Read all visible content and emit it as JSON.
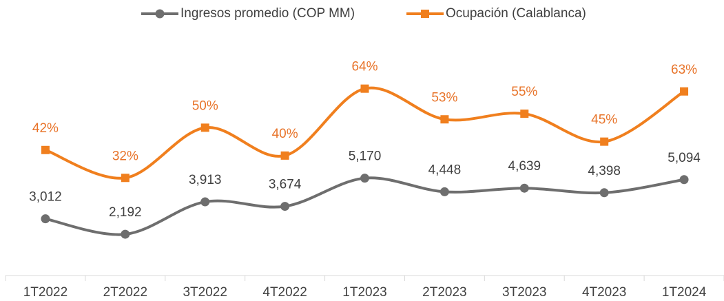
{
  "chart_data": {
    "type": "line",
    "categories": [
      "1T2022",
      "2T2022",
      "3T2022",
      "4T2022",
      "1T2023",
      "2T2023",
      "3T2023",
      "4T2023",
      "1T2024"
    ],
    "series": [
      {
        "name": "Ingresos promedio (COP MM)",
        "color": "#6e6e6e",
        "marker": "circle",
        "values": [
          3012,
          2192,
          3913,
          3674,
          5170,
          4448,
          4639,
          4398,
          5094
        ],
        "value_labels": [
          "3,012",
          "2,192",
          "3,913",
          "3,674",
          "5,170",
          "4,448",
          "4,639",
          "4,398",
          "5,094"
        ]
      },
      {
        "name": "Ocupación (Calablanca)",
        "color": "#f07f1e",
        "marker": "square",
        "axis": "y2",
        "values": [
          42,
          32,
          50,
          40,
          64,
          53,
          55,
          45,
          63
        ],
        "value_labels": [
          "42%",
          "32%",
          "50%",
          "40%",
          "64%",
          "53%",
          "55%",
          "45%",
          "63%"
        ]
      }
    ],
    "ylim": [
      0,
      12000
    ],
    "y2lim": [
      -3,
      78
    ],
    "smooth": true,
    "legend": "top"
  }
}
